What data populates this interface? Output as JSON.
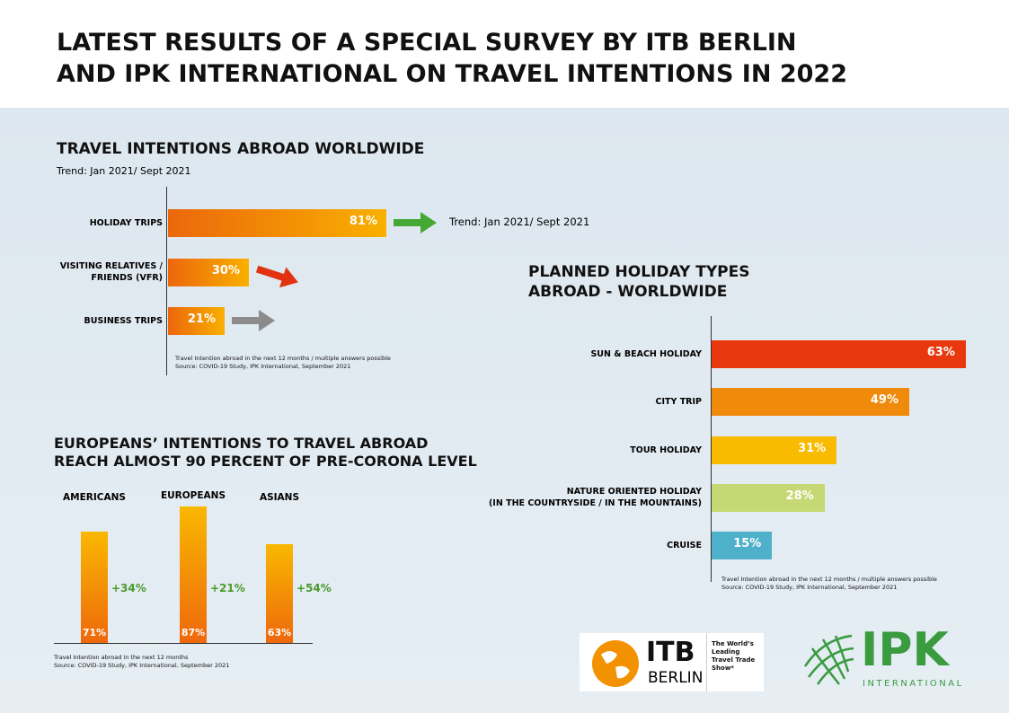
{
  "header": {
    "title": "LATEST RESULTS OF A SPECIAL SURVEY BY ITB BERLIN\nAND IPK INTERNATIONAL ON TRAVEL INTENTIONS IN 2022"
  },
  "chart_data": [
    {
      "type": "hbar",
      "title": "TRAVEL INTENTIONS ABROAD WORLDWIDE",
      "subtitle": "Trend: Jan 2021/ Sept 2021",
      "categories": [
        "HOLIDAY TRIPS",
        "VISITING RELATIVES /\nFRIENDS (VFR)",
        "BUSINESS TRIPS"
      ],
      "values": [
        81,
        30,
        21
      ],
      "value_labels": [
        "81%",
        "30%",
        "21%"
      ],
      "colors": [
        "#ec670c",
        "#f9b000"
      ],
      "trend_colors": [
        "#45a835",
        "#e2320f",
        "#8c8c8c"
      ],
      "annotation": "Trend: Jan 2021/ Sept 2021",
      "notes": [
        "Travel Intention abroad in the next 12 months / multiple answers possible",
        "Source: COVID-19 Study, IPK International, September 2021"
      ]
    },
    {
      "type": "vbar",
      "title": "EUROPEANS’ INTENTIONS TO TRAVEL ABROAD\nREACH ALMOST 90 PERCENT OF PRE-CORONA LEVEL",
      "categories": [
        "AMERICANS",
        "EUROPEANS",
        "ASIANS"
      ],
      "values": [
        71,
        87,
        63
      ],
      "value_labels": [
        "71%",
        "87%",
        "63%"
      ],
      "change_labels": [
        "+34%",
        "+21%",
        "+54%"
      ],
      "change_color": "#4a9a2c",
      "colors": [
        "#f9b800",
        "#ee680c"
      ],
      "notes": [
        "Travel Intention abroad in the next 12 months",
        "Source: COVID-19 Study, IPK International, September 2021"
      ]
    },
    {
      "type": "hbar",
      "title": "PLANNED HOLIDAY TYPES\nABROAD - WORLDWIDE",
      "categories": [
        "SUN & BEACH HOLIDAY",
        "CITY TRIP",
        "TOUR HOLIDAY",
        "NATURE ORIENTED HOLIDAY\n(IN THE COUNTRYSIDE / IN THE MOUNTAINS)",
        "CRUISE"
      ],
      "values": [
        63,
        49,
        31,
        28,
        15
      ],
      "value_labels": [
        "63%",
        "49%",
        "31%",
        "28%",
        "15%"
      ],
      "bar_colors": [
        "#e8380d",
        "#f08a0a",
        "#f8bb00",
        "#c6d873",
        "#4fb0cb"
      ],
      "notes": [
        "Travel Intention abroad in the next 12 months / multiple answers possible",
        "Source: COVID-19 Study, IPK International, September 2021"
      ]
    }
  ],
  "footer": {
    "itb_logo": "ITB",
    "itb_city": "BERLIN",
    "itb_tagline": "The World’s\nLeading\nTravel Trade\nShow*",
    "ipk_logo": "IPK",
    "ipk_sub": "INTERNATIONAL"
  }
}
